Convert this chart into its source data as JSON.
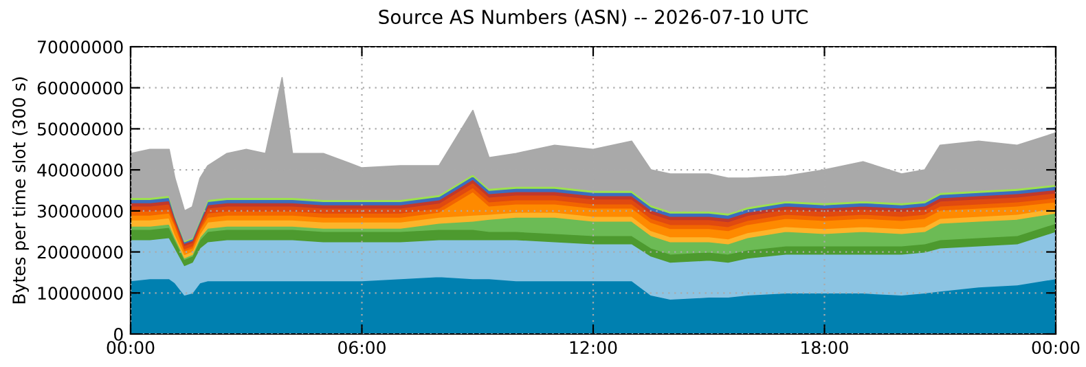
{
  "chart_data": {
    "type": "area",
    "stacked": true,
    "title": "Source AS Numbers (ASN) -- 2026-07-10 UTC",
    "ylabel": "Bytes per time slot (300 s)",
    "x": [
      0,
      0.5,
      1,
      1.15,
      1.4,
      1.6,
      1.8,
      2,
      2.5,
      3,
      3.5,
      3.93,
      4.2,
      5,
      6,
      7,
      8,
      8.88,
      9.3,
      10,
      11,
      12,
      13,
      13.5,
      14,
      15,
      15.5,
      16,
      17,
      18,
      19,
      20,
      20.6,
      21,
      22,
      23,
      24
    ],
    "xlim": [
      0,
      24
    ],
    "xticks": [
      {
        "value": 0,
        "label": "00:00"
      },
      {
        "value": 6,
        "label": "06:00"
      },
      {
        "value": 12,
        "label": "12:00"
      },
      {
        "value": 18,
        "label": "18:00"
      },
      {
        "value": 24,
        "label": "00:00"
      }
    ],
    "ylim": [
      0,
      70000000
    ],
    "yticks": [
      0,
      10000000,
      20000000,
      30000000,
      40000000,
      50000000,
      60000000,
      70000000
    ],
    "grid": true,
    "series": [
      {
        "color": "#0080b0",
        "values": [
          13000000,
          13500000,
          13500000,
          12500000,
          9500000,
          10000000,
          12500000,
          13000000,
          13000000,
          13000000,
          13000000,
          13000000,
          13000000,
          13000000,
          13000000,
          13500000,
          14000000,
          13500000,
          13500000,
          13000000,
          13000000,
          13000000,
          13000000,
          9500000,
          8500000,
          9000000,
          9000000,
          9500000,
          10000000,
          10000000,
          10000000,
          9500000,
          10000000,
          10500000,
          11500000,
          12000000,
          13500000
        ]
      },
      {
        "color": "#8cc4e3",
        "values": [
          10000000,
          9500000,
          10000000,
          8500000,
          7200000,
          7500000,
          8500000,
          9500000,
          10000000,
          10000000,
          10000000,
          10000000,
          10000000,
          9500000,
          9500000,
          9000000,
          9000000,
          9500000,
          9500000,
          10000000,
          9500000,
          9000000,
          9000000,
          9500000,
          9000000,
          9000000,
          8500000,
          9000000,
          9500000,
          9500000,
          9500000,
          10000000,
          10000000,
          10500000,
          10000000,
          10000000,
          11500000
        ]
      },
      {
        "color": "#4d9a2f",
        "values": [
          2500000,
          2500000,
          2500000,
          2000000,
          1500000,
          1500000,
          2000000,
          2500000,
          2500000,
          2500000,
          2500000,
          2500000,
          2500000,
          2500000,
          2500000,
          2500000,
          2500000,
          2500000,
          2000000,
          2000000,
          2000000,
          2000000,
          2000000,
          2000000,
          2000000,
          2000000,
          2000000,
          2000000,
          2000000,
          2000000,
          2000000,
          2000000,
          2000000,
          2000000,
          2000000,
          2000000,
          2000000
        ]
      },
      {
        "color": "#6cbb55",
        "values": [
          800000,
          800000,
          800000,
          600000,
          400000,
          400000,
          600000,
          800000,
          800000,
          800000,
          800000,
          800000,
          800000,
          800000,
          800000,
          800000,
          1500000,
          2000000,
          3000000,
          3500000,
          4000000,
          3500000,
          3500000,
          3000000,
          3000000,
          2500000,
          2500000,
          3000000,
          3500000,
          3000000,
          3500000,
          3000000,
          3000000,
          4000000,
          4000000,
          4000000,
          2500000
        ]
      },
      {
        "color": "#fdb42a",
        "values": [
          1500000,
          1500000,
          1500000,
          800000,
          800000,
          800000,
          800000,
          1500000,
          1500000,
          1500000,
          1500000,
          1500000,
          1500000,
          1500000,
          1500000,
          1500000,
          1500000,
          1500000,
          1200000,
          1200000,
          1200000,
          1200000,
          1200000,
          1200000,
          1200000,
          1200000,
          1200000,
          1200000,
          1200000,
          1200000,
          1200000,
          1200000,
          1200000,
          1200000,
          1200000,
          1200000,
          1200000
        ]
      },
      {
        "color": "#fe8a00",
        "values": [
          1200000,
          1200000,
          1200000,
          2100000,
          900000,
          800000,
          1100000,
          1200000,
          1200000,
          1200000,
          1200000,
          1200000,
          1200000,
          1200000,
          1200000,
          1200000,
          1200000,
          5700000,
          2000000,
          2000000,
          2000000,
          2000000,
          2000000,
          2000000,
          2000000,
          2000000,
          2000000,
          2000000,
          2000000,
          2000000,
          2000000,
          2000000,
          2000000,
          2000000,
          2000000,
          2000000,
          1500000
        ]
      },
      {
        "color": "#f26500",
        "values": [
          1000000,
          1000000,
          1000000,
          500000,
          500000,
          500000,
          500000,
          1000000,
          1000000,
          1000000,
          1000000,
          1000000,
          1000000,
          1000000,
          1000000,
          1000000,
          1000000,
          1000000,
          1000000,
          1000000,
          1000000,
          1000000,
          1000000,
          1000000,
          1000000,
          1000000,
          1000000,
          1000000,
          1000000,
          1000000,
          1000000,
          1000000,
          1000000,
          1000000,
          1000000,
          1000000,
          1000000
        ]
      },
      {
        "color": "#e04a10",
        "values": [
          1200000,
          1200000,
          1200000,
          800000,
          800000,
          800000,
          800000,
          1200000,
          1200000,
          1200000,
          1200000,
          1200000,
          1200000,
          1200000,
          1200000,
          1200000,
          1200000,
          1200000,
          1200000,
          1200000,
          1200000,
          1200000,
          1200000,
          1200000,
          1200000,
          1200000,
          1200000,
          1200000,
          1200000,
          1200000,
          1200000,
          1200000,
          1200000,
          1200000,
          1200000,
          1200000,
          1200000
        ]
      },
      {
        "color": "#c0392b",
        "values": [
          800000,
          800000,
          800000,
          500000,
          500000,
          500000,
          500000,
          800000,
          800000,
          800000,
          800000,
          800000,
          800000,
          800000,
          800000,
          800000,
          800000,
          800000,
          800000,
          800000,
          800000,
          800000,
          800000,
          800000,
          800000,
          800000,
          800000,
          800000,
          800000,
          800000,
          800000,
          800000,
          800000,
          800000,
          800000,
          800000,
          800000
        ]
      },
      {
        "color": "#3b6ebf",
        "values": [
          800000,
          800000,
          800000,
          400000,
          400000,
          400000,
          400000,
          800000,
          800000,
          800000,
          800000,
          800000,
          800000,
          800000,
          800000,
          800000,
          800000,
          800000,
          800000,
          800000,
          800000,
          800000,
          800000,
          800000,
          800000,
          800000,
          800000,
          800000,
          800000,
          800000,
          800000,
          800000,
          800000,
          800000,
          800000,
          800000,
          800000
        ]
      },
      {
        "color": "#9de24f",
        "values": [
          500000,
          500000,
          500000,
          300000,
          300000,
          300000,
          300000,
          500000,
          500000,
          500000,
          500000,
          500000,
          500000,
          500000,
          500000,
          500000,
          500000,
          500000,
          500000,
          500000,
          500000,
          500000,
          500000,
          500000,
          500000,
          500000,
          500000,
          500000,
          500000,
          500000,
          500000,
          500000,
          500000,
          500000,
          500000,
          500000,
          500000
        ]
      },
      {
        "color": "#a9a9a9",
        "values": [
          10700000,
          11700000,
          11200000,
          9000000,
          7200000,
          7500000,
          10000000,
          8200000,
          10700000,
          11700000,
          10700000,
          29200000,
          10700000,
          11200000,
          7700000,
          8200000,
          7000000,
          15500000,
          7500000,
          8000000,
          10000000,
          10000000,
          12000000,
          8500000,
          9000000,
          9000000,
          8500000,
          7000000,
          6000000,
          8000000,
          9500000,
          7000000,
          7500000,
          11500000,
          12000000,
          10500000,
          12500000
        ]
      }
    ]
  }
}
